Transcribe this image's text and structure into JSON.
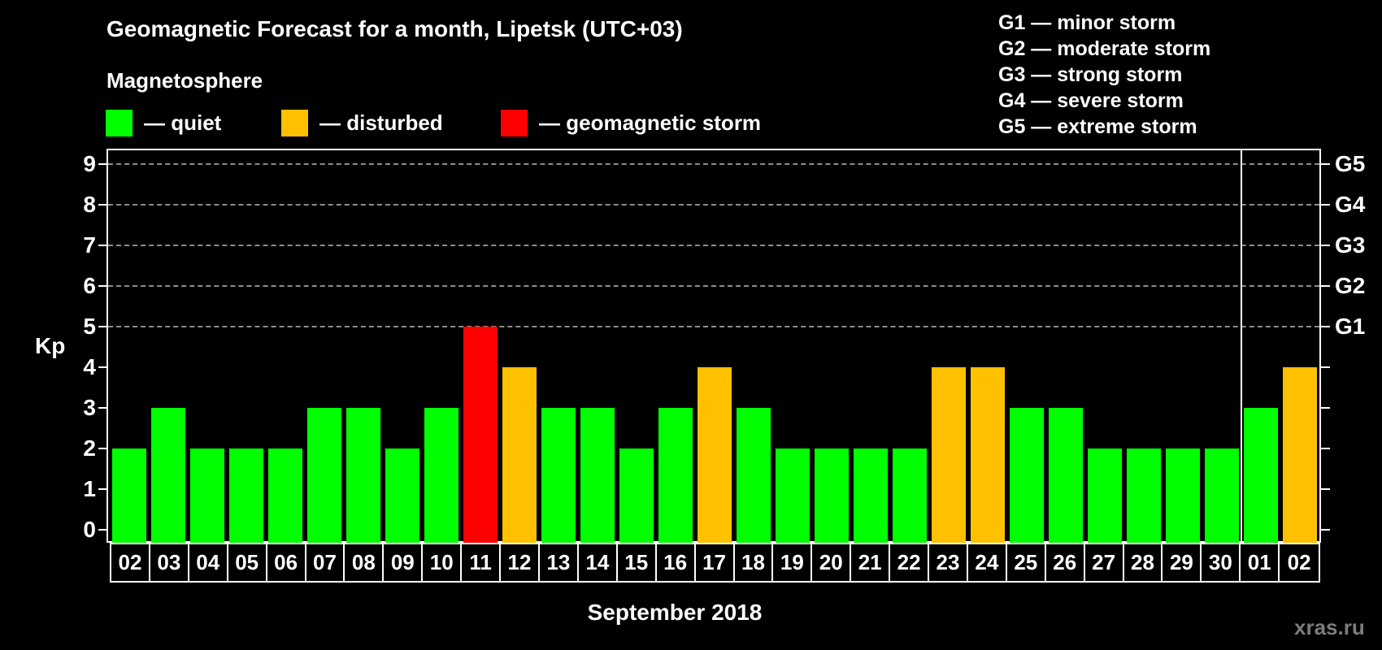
{
  "title": "Geomagnetic Forecast for a month, Lipetsk (UTC+03)",
  "subtitle": "Magnetosphere",
  "legend": [
    {
      "label": "— quiet",
      "color": "#00ff00"
    },
    {
      "label": "— disturbed",
      "color": "#ffc000"
    },
    {
      "label": "— geomagnetic storm",
      "color": "#ff0000"
    }
  ],
  "g_legend": [
    "G1 — minor storm",
    "G2 — moderate storm",
    "G3 — strong storm",
    "G4 — severe storm",
    "G5 — extreme storm"
  ],
  "watermark": "xras.ru",
  "chart_data": {
    "type": "bar",
    "title": "Geomagnetic Forecast for a month, Lipetsk (UTC+03)",
    "xlabel": "September 2018",
    "ylabel": "Kp",
    "ylim": [
      0,
      9
    ],
    "yticks": [
      0,
      1,
      2,
      3,
      4,
      5,
      6,
      7,
      8,
      9
    ],
    "right_axis_labels": [
      {
        "kp": 5,
        "label": "G1"
      },
      {
        "kp": 6,
        "label": "G2"
      },
      {
        "kp": 7,
        "label": "G3"
      },
      {
        "kp": 8,
        "label": "G4"
      },
      {
        "kp": 9,
        "label": "G5"
      }
    ],
    "grid": "dashed horizontal at Kp 5-9",
    "categories": [
      "02",
      "03",
      "04",
      "05",
      "06",
      "07",
      "08",
      "09",
      "10",
      "11",
      "12",
      "13",
      "14",
      "15",
      "16",
      "17",
      "18",
      "19",
      "20",
      "21",
      "22",
      "23",
      "24",
      "25",
      "26",
      "27",
      "28",
      "29",
      "30",
      "01",
      "02"
    ],
    "values": [
      2,
      3,
      2,
      2,
      2,
      3,
      3,
      2,
      3,
      5,
      4,
      3,
      3,
      2,
      3,
      4,
      3,
      2,
      2,
      2,
      2,
      4,
      4,
      3,
      3,
      2,
      2,
      2,
      2,
      3,
      4
    ],
    "status": [
      "quiet",
      "quiet",
      "quiet",
      "quiet",
      "quiet",
      "quiet",
      "quiet",
      "quiet",
      "quiet",
      "storm",
      "disturbed",
      "quiet",
      "quiet",
      "quiet",
      "quiet",
      "disturbed",
      "quiet",
      "quiet",
      "quiet",
      "quiet",
      "quiet",
      "disturbed",
      "disturbed",
      "quiet",
      "quiet",
      "quiet",
      "quiet",
      "quiet",
      "quiet",
      "quiet",
      "disturbed"
    ],
    "colors": {
      "quiet": "#00ff00",
      "disturbed": "#ffc000",
      "storm": "#ff0000"
    },
    "month_divider_after_index": 28
  }
}
